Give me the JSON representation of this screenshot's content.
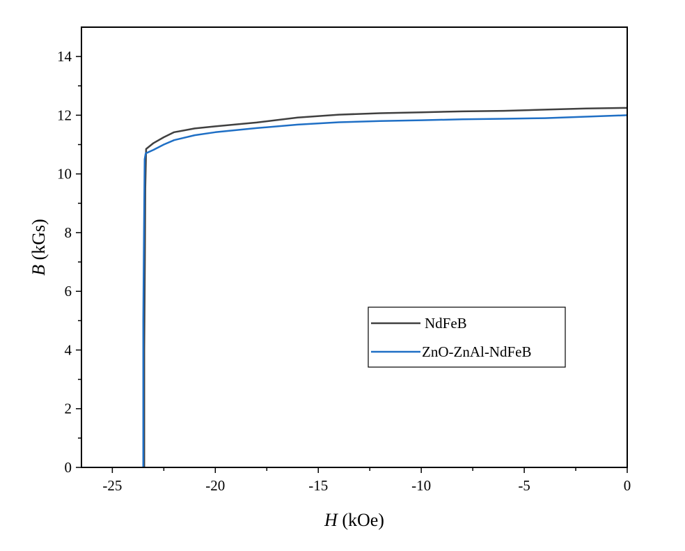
{
  "chart_data": {
    "type": "line",
    "xlabel_var": "H",
    "xlabel_unit": " (kOe)",
    "ylabel_var": "B",
    "ylabel_unit": " (kGs)",
    "xlim": [
      -26.5,
      0
    ],
    "ylim": [
      0,
      15
    ],
    "x_ticks": [
      -25,
      -20,
      -15,
      -10,
      -5,
      0
    ],
    "x_tick_labels": [
      "-25",
      "-20",
      "-15",
      "-10",
      "-5",
      "0"
    ],
    "y_ticks": [
      0,
      2,
      4,
      6,
      8,
      10,
      12,
      14
    ],
    "y_tick_labels": [
      "0",
      "2",
      "4",
      "6",
      "8",
      "10",
      "12",
      "14"
    ],
    "grid": false,
    "legend_position": "center-right",
    "series": [
      {
        "name": "NdFeB",
        "color": "#404040",
        "points": [
          [
            -23.45,
            0
          ],
          [
            -23.45,
            4.0
          ],
          [
            -23.42,
            7.0
          ],
          [
            -23.4,
            9.5
          ],
          [
            -23.36,
            10.85
          ],
          [
            -23.0,
            11.05
          ],
          [
            -22.5,
            11.25
          ],
          [
            -22.0,
            11.42
          ],
          [
            -21.0,
            11.55
          ],
          [
            -20.0,
            11.62
          ],
          [
            -18.0,
            11.75
          ],
          [
            -16.0,
            11.92
          ],
          [
            -14.0,
            12.02
          ],
          [
            -12.0,
            12.07
          ],
          [
            -10.0,
            12.1
          ],
          [
            -8.0,
            12.13
          ],
          [
            -6.0,
            12.15
          ],
          [
            -4.0,
            12.19
          ],
          [
            -2.0,
            12.23
          ],
          [
            0,
            12.25
          ]
        ]
      },
      {
        "name": "ZnO-ZnAl-NdFeB",
        "color": "#1f6fc5",
        "points": [
          [
            -23.5,
            0
          ],
          [
            -23.5,
            5.0
          ],
          [
            -23.46,
            8.2
          ],
          [
            -23.43,
            10.5
          ],
          [
            -23.38,
            10.7
          ],
          [
            -23.0,
            10.82
          ],
          [
            -22.5,
            11.0
          ],
          [
            -22.0,
            11.15
          ],
          [
            -21.0,
            11.32
          ],
          [
            -20.0,
            11.42
          ],
          [
            -18.0,
            11.56
          ],
          [
            -16.0,
            11.68
          ],
          [
            -14.0,
            11.76
          ],
          [
            -12.0,
            11.8
          ],
          [
            -10.0,
            11.83
          ],
          [
            -8.0,
            11.86
          ],
          [
            -6.0,
            11.88
          ],
          [
            -4.0,
            11.9
          ],
          [
            -2.0,
            11.95
          ],
          [
            0,
            12.0
          ]
        ]
      }
    ]
  }
}
